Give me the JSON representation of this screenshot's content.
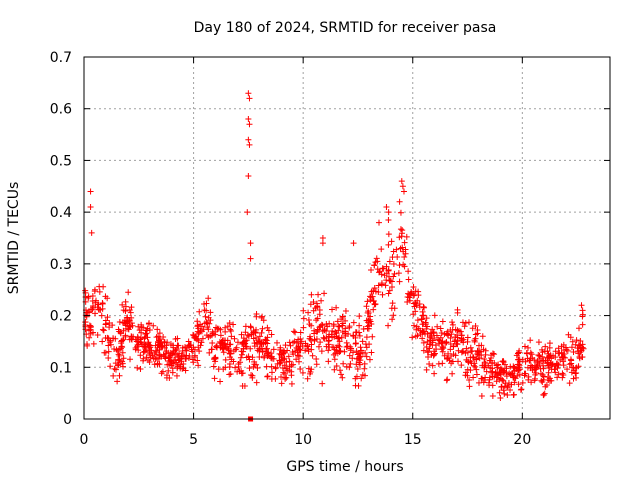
{
  "chart_data": {
    "type": "scatter",
    "title": "Day 180 of 2024, SRMTID for receiver pasa",
    "xlabel": "GPS time / hours",
    "ylabel": "SRMTID / TECUs",
    "xlim": [
      0,
      24
    ],
    "ylim": [
      0,
      0.7
    ],
    "xticks": [
      0,
      5,
      10,
      15,
      20
    ],
    "yticks": [
      0,
      0.1,
      0.2,
      0.3,
      0.4,
      0.5,
      0.6,
      0.7
    ],
    "xtick_labels": [
      "0",
      "5",
      "10",
      "15",
      "20"
    ],
    "ytick_labels": [
      "0",
      "0.1",
      "0.2",
      "0.3",
      "0.4",
      "0.5",
      "0.6",
      "0.7"
    ],
    "grid": true,
    "marker": "+",
    "color": "#ff0000",
    "series": [
      {
        "name": "SRMTID",
        "description": "approximate profile (hour, typical value, spread) with notable outliers",
        "profile_hours": [
          0,
          0.5,
          1,
          1.5,
          2,
          2.5,
          3,
          3.5,
          4,
          4.5,
          5,
          5.5,
          6,
          6.5,
          7,
          7.5,
          8,
          8.5,
          9,
          9.5,
          10,
          10.5,
          11,
          11.5,
          12,
          12.5,
          13,
          13.5,
          14,
          14.5,
          15,
          15.5,
          16,
          16.5,
          17,
          17.5,
          18,
          18.5,
          19,
          19.5,
          20,
          20.5,
          21,
          21.5,
          22,
          22.5,
          22.8
        ],
        "profile_values": [
          0.2,
          0.22,
          0.17,
          0.11,
          0.2,
          0.14,
          0.15,
          0.13,
          0.12,
          0.12,
          0.13,
          0.2,
          0.14,
          0.14,
          0.12,
          0.13,
          0.15,
          0.13,
          0.1,
          0.12,
          0.15,
          0.18,
          0.16,
          0.15,
          0.15,
          0.12,
          0.18,
          0.3,
          0.28,
          0.32,
          0.22,
          0.18,
          0.13,
          0.13,
          0.15,
          0.13,
          0.12,
          0.1,
          0.08,
          0.08,
          0.1,
          0.11,
          0.1,
          0.11,
          0.12,
          0.12,
          0.16
        ],
        "profile_spread": [
          0.06,
          0.07,
          0.05,
          0.04,
          0.06,
          0.04,
          0.04,
          0.04,
          0.04,
          0.04,
          0.04,
          0.05,
          0.05,
          0.05,
          0.04,
          0.06,
          0.05,
          0.05,
          0.04,
          0.05,
          0.06,
          0.08,
          0.07,
          0.06,
          0.06,
          0.06,
          0.06,
          0.07,
          0.08,
          0.08,
          0.06,
          0.05,
          0.05,
          0.05,
          0.05,
          0.05,
          0.05,
          0.04,
          0.03,
          0.03,
          0.04,
          0.04,
          0.04,
          0.04,
          0.04,
          0.04,
          0.05
        ],
        "outliers": [
          {
            "x": 0.3,
            "y": 0.44
          },
          {
            "x": 0.3,
            "y": 0.41
          },
          {
            "x": 0.35,
            "y": 0.36
          },
          {
            "x": 7.5,
            "y": 0.63
          },
          {
            "x": 7.55,
            "y": 0.62
          },
          {
            "x": 7.5,
            "y": 0.58
          },
          {
            "x": 7.55,
            "y": 0.57
          },
          {
            "x": 7.5,
            "y": 0.54
          },
          {
            "x": 7.55,
            "y": 0.53
          },
          {
            "x": 7.5,
            "y": 0.47
          },
          {
            "x": 7.45,
            "y": 0.4
          },
          {
            "x": 7.6,
            "y": 0.34
          },
          {
            "x": 7.6,
            "y": 0.31
          },
          {
            "x": 10.9,
            "y": 0.35
          },
          {
            "x": 10.9,
            "y": 0.34
          },
          {
            "x": 12.3,
            "y": 0.34
          },
          {
            "x": 14.5,
            "y": 0.46
          },
          {
            "x": 14.55,
            "y": 0.45
          },
          {
            "x": 14.6,
            "y": 0.44
          },
          {
            "x": 14.4,
            "y": 0.42
          },
          {
            "x": 13.8,
            "y": 0.41
          },
          {
            "x": 13.9,
            "y": 0.4
          },
          {
            "x": 22.7,
            "y": 0.22
          },
          {
            "x": 22.75,
            "y": 0.21
          }
        ],
        "zero_point": {
          "x": 7.6,
          "y": 0
        }
      }
    ]
  }
}
